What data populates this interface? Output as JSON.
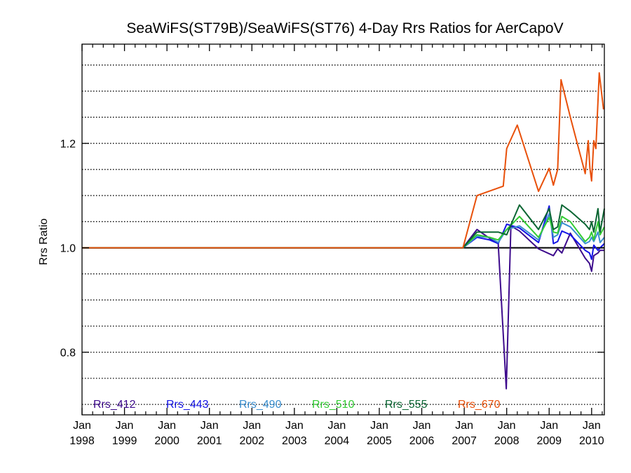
{
  "chart_data": {
    "type": "line",
    "title": "SeaWiFS(ST79B)/SeaWiFS(ST76) 4-Day Rrs Ratios for AerCapoV",
    "xlabel": "",
    "ylabel": "Rrs Ratio",
    "x_ticks": [
      {
        "year": 1998,
        "month": "Jan",
        "year_label": "1998"
      },
      {
        "year": 1999,
        "month": "Jan",
        "year_label": "1999"
      },
      {
        "year": 2000,
        "month": "Jan",
        "year_label": "2000"
      },
      {
        "year": 2001,
        "month": "Jan",
        "year_label": "2001"
      },
      {
        "year": 2002,
        "month": "Jan",
        "year_label": "2002"
      },
      {
        "year": 2003,
        "month": "Jan",
        "year_label": "2003"
      },
      {
        "year": 2004,
        "month": "Jan",
        "year_label": "2004"
      },
      {
        "year": 2005,
        "month": "Jan",
        "year_label": "2005"
      },
      {
        "year": 2006,
        "month": "Jan",
        "year_label": "2006"
      },
      {
        "year": 2007,
        "month": "Jan",
        "year_label": "2007"
      },
      {
        "year": 2008,
        "month": "Jan",
        "year_label": "2008"
      },
      {
        "year": 2009,
        "month": "Jan",
        "year_label": "2009"
      },
      {
        "year": 2010,
        "month": "Jan",
        "year_label": "2010"
      }
    ],
    "xlim": [
      1998.0,
      2010.3
    ],
    "ylim": [
      0.68,
      1.39
    ],
    "y_ticks": [
      "0.8",
      "1.0",
      "1.2"
    ],
    "y_gridlines": [
      0.7,
      0.75,
      0.8,
      0.85,
      0.9,
      0.95,
      1.0,
      1.05,
      1.1,
      1.15,
      1.2,
      1.25,
      1.3,
      1.35
    ],
    "grid": "horizontal dotted",
    "legend_position": "bottom inside plot",
    "reference_line": {
      "y": 1.0,
      "color": "#000000"
    },
    "series": [
      {
        "name": "Rrs_412",
        "color": "#3d0a8c",
        "x": [
          1998.0,
          2006.97,
          2007.3,
          2007.6,
          2007.8,
          2007.99,
          2008.1,
          2008.3,
          2008.75,
          2009.1,
          2009.2,
          2009.3,
          2009.5,
          2009.85,
          2009.95,
          2010.0,
          2010.05,
          2010.15,
          2010.2,
          2010.3
        ],
        "y": [
          1.0,
          1.0,
          1.035,
          1.018,
          1.008,
          0.73,
          1.042,
          1.032,
          0.998,
          0.985,
          0.998,
          0.99,
          1.028,
          0.98,
          0.97,
          0.955,
          0.985,
          0.99,
          0.995,
          0.995
        ]
      },
      {
        "name": "Rrs_443",
        "color": "#1414e6",
        "x": [
          1998.0,
          2006.97,
          2007.3,
          2007.6,
          2007.8,
          2008.0,
          2008.3,
          2008.75,
          2009.0,
          2009.1,
          2009.2,
          2009.3,
          2009.5,
          2009.85,
          2009.95,
          2010.0,
          2010.05,
          2010.15,
          2010.2,
          2010.3
        ],
        "y": [
          1.0,
          1.0,
          1.02,
          1.015,
          1.008,
          1.045,
          1.038,
          1.01,
          1.08,
          1.008,
          1.012,
          1.032,
          1.025,
          0.995,
          0.99,
          0.978,
          1.005,
          0.995,
          1.0,
          1.008
        ]
      },
      {
        "name": "Rrs_490",
        "color": "#3a8fd0",
        "x": [
          1998.0,
          2006.97,
          2007.3,
          2007.6,
          2007.8,
          2008.0,
          2008.3,
          2008.75,
          2009.0,
          2009.1,
          2009.2,
          2009.3,
          2009.5,
          2009.85,
          2009.95,
          2010.0,
          2010.05,
          2010.15,
          2010.2,
          2010.3
        ],
        "y": [
          1.0,
          1.0,
          1.022,
          1.02,
          1.01,
          1.035,
          1.042,
          1.015,
          1.065,
          1.02,
          1.025,
          1.048,
          1.04,
          1.008,
          1.012,
          1.02,
          1.012,
          1.03,
          1.01,
          1.02
        ]
      },
      {
        "name": "Rrs_510",
        "color": "#33cc33",
        "x": [
          1998.0,
          2006.97,
          2007.3,
          2007.6,
          2007.8,
          2008.0,
          2008.3,
          2008.75,
          2009.0,
          2009.1,
          2009.2,
          2009.3,
          2009.5,
          2009.85,
          2009.95,
          2010.0,
          2010.05,
          2010.15,
          2010.2,
          2010.3
        ],
        "y": [
          1.0,
          1.0,
          1.025,
          1.02,
          1.015,
          1.035,
          1.06,
          1.02,
          1.058,
          1.03,
          1.028,
          1.06,
          1.05,
          1.012,
          1.02,
          1.03,
          1.015,
          1.05,
          1.025,
          1.04
        ]
      },
      {
        "name": "Rrs_555",
        "color": "#0a6633",
        "x": [
          1998.0,
          2006.97,
          2007.3,
          2007.6,
          2007.8,
          2008.0,
          2008.3,
          2008.75,
          2009.0,
          2009.1,
          2009.2,
          2009.3,
          2009.5,
          2009.85,
          2009.95,
          2010.0,
          2010.05,
          2010.15,
          2010.2,
          2010.3
        ],
        "y": [
          1.0,
          1.0,
          1.03,
          1.03,
          1.03,
          1.025,
          1.082,
          1.035,
          1.075,
          1.035,
          1.04,
          1.082,
          1.07,
          1.045,
          1.035,
          1.05,
          1.03,
          1.075,
          1.03,
          1.075
        ]
      },
      {
        "name": "Rrs_670",
        "color": "#e8500a",
        "x": [
          1998.0,
          2006.97,
          2007.3,
          2007.92,
          2008.0,
          2008.25,
          2008.75,
          2009.0,
          2009.1,
          2009.2,
          2009.28,
          2009.5,
          2009.85,
          2009.92,
          2009.96,
          2010.0,
          2010.05,
          2010.1,
          2010.18,
          2010.28
        ],
        "y": [
          1.0,
          1.0,
          1.1,
          1.118,
          1.19,
          1.235,
          1.108,
          1.152,
          1.12,
          1.15,
          1.322,
          1.25,
          1.142,
          1.205,
          1.152,
          1.128,
          1.205,
          1.19,
          1.335,
          1.265
        ]
      }
    ]
  }
}
